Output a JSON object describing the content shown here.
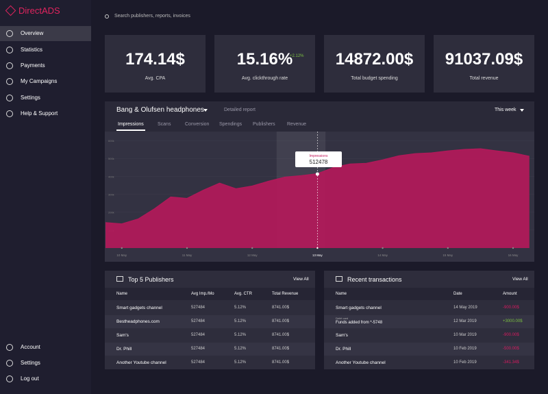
{
  "sidebar": {
    "logo": "DirectADS",
    "nav": [
      "Overview",
      "Statistics",
      "Payments",
      "My Campaigns",
      "Settings",
      "Help & Support"
    ],
    "bottom": [
      "Account",
      "Settings",
      "Log out"
    ]
  },
  "search": "Search publishers, reports, invoices",
  "kpis": [
    {
      "value": "174.14$",
      "label": "Avg. CPA"
    },
    {
      "value": "15.16%",
      "delta": "+2.12%",
      "label": "Avg. clickthrough rate"
    },
    {
      "value": "14872.00$",
      "label": "Total budget spending"
    },
    {
      "value": "91037.09$",
      "label": "Total revenue"
    }
  ],
  "report": {
    "title": "Bang  & Olufsen headphones",
    "link": "Detailed report",
    "period": "This week",
    "tabs": [
      "Impressions",
      "Scans",
      "Conversion",
      "Spendings",
      "Publishers",
      "Revenue"
    ],
    "tooltip": {
      "label": "Impressions",
      "value": "512478"
    }
  },
  "chart_data": {
    "type": "area",
    "color": "#b3195a",
    "categories": [
      null,
      "10 May",
      null,
      null,
      null,
      "11 May",
      null,
      null,
      null,
      "12 May",
      null,
      null,
      null,
      "13 May",
      null,
      null,
      null,
      "14 May",
      null,
      null,
      null,
      "15 May",
      null,
      null,
      null,
      "16 May",
      null
    ],
    "values": [
      142000,
      135000,
      162000,
      219000,
      285000,
      277000,
      323000,
      362000,
      331000,
      346000,
      373000,
      396000,
      404000,
      415000,
      450000,
      469000,
      473000,
      492000,
      515000,
      527000,
      531000,
      542000,
      550000,
      554000,
      542000,
      531000,
      512000
    ],
    "ylim": [
      0,
      650000
    ],
    "yticks": [
      {
        "value": 100000,
        "label": "100k"
      },
      {
        "value": 200000,
        "label": "200k"
      },
      {
        "value": 300000,
        "label": "300k"
      },
      {
        "value": 400000,
        "label": "400k"
      },
      {
        "value": 500000,
        "label": "500k"
      },
      {
        "value": 600000,
        "label": "600k"
      }
    ],
    "grid": true
  },
  "publishers": {
    "title": "Top 5 Publishers",
    "action": "View All",
    "columns": [
      "Name",
      "Avg Imp./Mo",
      "Avg. CTR",
      "Total Revenue"
    ],
    "rows": [
      [
        "Smart gadgets channel",
        "527484",
        "5.12%",
        "8741.00$"
      ],
      [
        "Bestheadphones.com",
        "527484",
        "5.12%",
        "8741.00$"
      ],
      [
        "Sam's",
        "527484",
        "5.12%",
        "8741.00$"
      ],
      [
        "Dr. Phill",
        "527484",
        "5.12%",
        "8741.00$"
      ],
      [
        "Another Youtube channel",
        "527484",
        "5.12%",
        "8741.00$"
      ]
    ]
  },
  "transactions": {
    "title": "Recent transactions",
    "action": "View All",
    "columns": [
      "Name",
      "Date",
      "Amount"
    ],
    "rows": [
      {
        "name": "Smart gadgets channel",
        "date": "14 May 2019",
        "amount": "-900.00$"
      },
      {
        "note": "Debit card",
        "name": "Funds added from *-5748",
        "date": "12 Mar 2019",
        "amount": "+3000.00$"
      },
      {
        "name": "Sam's",
        "date": "10 Mar 2019",
        "amount": "-900.00$"
      },
      {
        "name": "Dr. Phill",
        "date": "10 Feb 2019",
        "amount": "-500.00$"
      },
      {
        "name": "Another Youtube channel",
        "date": "10 Feb 2019",
        "amount": "-341.34$"
      }
    ]
  }
}
